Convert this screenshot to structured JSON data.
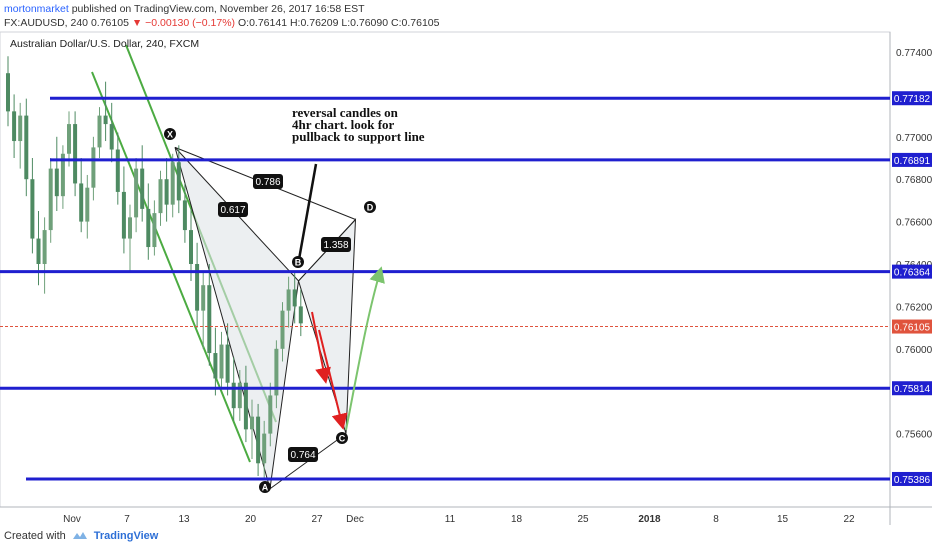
{
  "header": {
    "publisher": "mortonmarket",
    "publish_text": "published on TradingView.com, November 26, 2017 16:58 EST",
    "symbol_info": "FX:AUDUSD, 240",
    "last_price": "0.76105",
    "change_text": "▼ −0.00130 (−0.17%)",
    "open_label": "O:",
    "open_value": "0.76141",
    "high_label": "H:",
    "high_value": "0.76209",
    "low_label": "L:",
    "low_value": "0.76090",
    "close_label": "C:",
    "close_value": "0.76105"
  },
  "chart_title": "Australian Dollar/U.S. Dollar, 240, FXCM",
  "footer": {
    "created_with": "Created with",
    "brand": "TradingView"
  },
  "colors": {
    "level_line": "#1f1fcf",
    "price_line": "#e0533d",
    "candle_up": "#6fa07a",
    "candle_down": "#4e8a62",
    "trendline": "#4cab42",
    "pattern_fill": "#dfe4e8",
    "pattern_stroke": "#222222",
    "arrow_red": "#e02020",
    "arrow_green": "#7cc46e",
    "arrow_black": "#111111"
  },
  "chart_data": {
    "type": "candlestick",
    "ylim": [
      0.7535,
      0.775
    ],
    "y_ticks": [
      "0.77400",
      "0.77200",
      "0.77000",
      "0.76800",
      "0.76600",
      "0.76400",
      "0.76200",
      "0.76000",
      "0.75800",
      "0.75600"
    ],
    "x_tick_labels": [
      "Nov",
      "7",
      "13",
      "20",
      "27",
      "Dec",
      "11",
      "18",
      "25",
      "2018",
      "8",
      "15",
      "22"
    ],
    "price_levels": [
      {
        "label": "0.77182",
        "value": 0.77182
      },
      {
        "label": "0.76891",
        "value": 0.76891
      },
      {
        "label": "0.76364",
        "value": 0.76364
      },
      {
        "label": "0.75814",
        "value": 0.75814
      },
      {
        "label": "0.75386",
        "value": 0.75386
      }
    ],
    "current_price": {
      "label": "0.76105",
      "value": 0.76105
    },
    "pattern": {
      "points": [
        {
          "label": "X",
          "date": "Nov 11",
          "value": 0.7695
        },
        {
          "label": "A",
          "date": "Nov 21",
          "value": 0.7534
        },
        {
          "label": "B",
          "date": "Nov 24",
          "value": 0.7632
        },
        {
          "label": "C",
          "date": "Nov 29",
          "value": 0.756
        },
        {
          "label": "D",
          "date": "Nov 30",
          "value": 0.7661
        }
      ],
      "ratios": [
        "0.617",
        "0.786",
        "1.358",
        "0.764"
      ]
    },
    "annotation": "reversal candles on\n4hr chart. look for\npullback to support line",
    "candles": [
      {
        "o": 0.773,
        "h": 0.7738,
        "l": 0.7705,
        "c": 0.7712
      },
      {
        "o": 0.7712,
        "h": 0.772,
        "l": 0.769,
        "c": 0.7698
      },
      {
        "o": 0.7698,
        "h": 0.7716,
        "l": 0.7685,
        "c": 0.771
      },
      {
        "o": 0.771,
        "h": 0.7718,
        "l": 0.7672,
        "c": 0.768
      },
      {
        "o": 0.768,
        "h": 0.769,
        "l": 0.7645,
        "c": 0.7652
      },
      {
        "o": 0.7652,
        "h": 0.7665,
        "l": 0.763,
        "c": 0.764
      },
      {
        "o": 0.764,
        "h": 0.7662,
        "l": 0.7626,
        "c": 0.7656
      },
      {
        "o": 0.7656,
        "h": 0.769,
        "l": 0.765,
        "c": 0.7685
      },
      {
        "o": 0.7685,
        "h": 0.77,
        "l": 0.7665,
        "c": 0.7672
      },
      {
        "o": 0.7672,
        "h": 0.7696,
        "l": 0.7666,
        "c": 0.7692
      },
      {
        "o": 0.7692,
        "h": 0.7712,
        "l": 0.7686,
        "c": 0.7706
      },
      {
        "o": 0.7706,
        "h": 0.7712,
        "l": 0.7672,
        "c": 0.7678
      },
      {
        "o": 0.7678,
        "h": 0.769,
        "l": 0.7655,
        "c": 0.766
      },
      {
        "o": 0.766,
        "h": 0.7682,
        "l": 0.7652,
        "c": 0.7676
      },
      {
        "o": 0.7676,
        "h": 0.77,
        "l": 0.767,
        "c": 0.7695
      },
      {
        "o": 0.7695,
        "h": 0.7714,
        "l": 0.769,
        "c": 0.771
      },
      {
        "o": 0.771,
        "h": 0.7726,
        "l": 0.7698,
        "c": 0.7706
      },
      {
        "o": 0.7706,
        "h": 0.7716,
        "l": 0.7688,
        "c": 0.7694
      },
      {
        "o": 0.7694,
        "h": 0.7702,
        "l": 0.7668,
        "c": 0.7674
      },
      {
        "o": 0.7674,
        "h": 0.7686,
        "l": 0.7645,
        "c": 0.7652
      },
      {
        "o": 0.7652,
        "h": 0.7668,
        "l": 0.7636,
        "c": 0.7662
      },
      {
        "o": 0.7662,
        "h": 0.769,
        "l": 0.7655,
        "c": 0.7685
      },
      {
        "o": 0.7685,
        "h": 0.7696,
        "l": 0.766,
        "c": 0.7666
      },
      {
        "o": 0.7666,
        "h": 0.7678,
        "l": 0.7642,
        "c": 0.7648
      },
      {
        "o": 0.7648,
        "h": 0.767,
        "l": 0.7644,
        "c": 0.7664
      },
      {
        "o": 0.7664,
        "h": 0.7684,
        "l": 0.7658,
        "c": 0.768
      },
      {
        "o": 0.768,
        "h": 0.769,
        "l": 0.766,
        "c": 0.7668
      },
      {
        "o": 0.7668,
        "h": 0.7692,
        "l": 0.7662,
        "c": 0.7688
      },
      {
        "o": 0.7688,
        "h": 0.7696,
        "l": 0.7664,
        "c": 0.767
      },
      {
        "o": 0.767,
        "h": 0.7678,
        "l": 0.765,
        "c": 0.7656
      },
      {
        "o": 0.7656,
        "h": 0.7666,
        "l": 0.7632,
        "c": 0.764
      },
      {
        "o": 0.764,
        "h": 0.765,
        "l": 0.761,
        "c": 0.7618
      },
      {
        "o": 0.7618,
        "h": 0.7636,
        "l": 0.76,
        "c": 0.763
      },
      {
        "o": 0.763,
        "h": 0.764,
        "l": 0.7592,
        "c": 0.7598
      },
      {
        "o": 0.7598,
        "h": 0.761,
        "l": 0.7578,
        "c": 0.7586
      },
      {
        "o": 0.7586,
        "h": 0.7608,
        "l": 0.7582,
        "c": 0.7602
      },
      {
        "o": 0.7602,
        "h": 0.7612,
        "l": 0.7578,
        "c": 0.7584
      },
      {
        "o": 0.7584,
        "h": 0.7596,
        "l": 0.7566,
        "c": 0.7572
      },
      {
        "o": 0.7572,
        "h": 0.759,
        "l": 0.7566,
        "c": 0.7584
      },
      {
        "o": 0.7584,
        "h": 0.7592,
        "l": 0.7556,
        "c": 0.7562
      },
      {
        "o": 0.7562,
        "h": 0.7576,
        "l": 0.7548,
        "c": 0.7568
      },
      {
        "o": 0.7568,
        "h": 0.7574,
        "l": 0.754,
        "c": 0.7546
      },
      {
        "o": 0.7546,
        "h": 0.7566,
        "l": 0.7538,
        "c": 0.756
      },
      {
        "o": 0.756,
        "h": 0.7584,
        "l": 0.7554,
        "c": 0.7578
      },
      {
        "o": 0.7578,
        "h": 0.7604,
        "l": 0.7572,
        "c": 0.76
      },
      {
        "o": 0.76,
        "h": 0.7622,
        "l": 0.7594,
        "c": 0.7618
      },
      {
        "o": 0.7618,
        "h": 0.7634,
        "l": 0.761,
        "c": 0.7628
      },
      {
        "o": 0.7628,
        "h": 0.7636,
        "l": 0.7612,
        "c": 0.762
      },
      {
        "o": 0.762,
        "h": 0.7628,
        "l": 0.7606,
        "c": 0.7612
      }
    ]
  }
}
